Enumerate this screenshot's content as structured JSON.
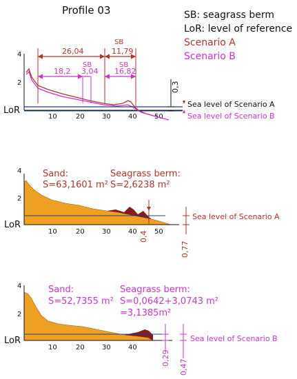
{
  "title": "Profile 03",
  "legend": {
    "sb": "SB: seagrass berm",
    "lor": "LoR: level of reference",
    "scenario_a": "Scenario A",
    "scenario_b": "Scenario B"
  },
  "colors": {
    "scenario_a": "#b2332b",
    "scenario_b": "#cc33cc",
    "sand": "#f0a020",
    "berm": "#8b1a1a",
    "sea_level": "#1f3f7a"
  },
  "lor_label": "LoR",
  "top_panel": {
    "y_ticks": [
      "4",
      "2"
    ],
    "x_ticks": [
      "10",
      "20",
      "30",
      "40",
      "50"
    ],
    "dims_a": [
      "26,04",
      "11,79"
    ],
    "sb_label_a": "SB",
    "dims_b": [
      "18,2",
      "3,04",
      "16,82"
    ],
    "sb_label_b": "SB",
    "vertical_dim": "0,3",
    "sea_level_a": "Sea level of Scenario A",
    "sea_level_b": "Sea level of Scenario B"
  },
  "middle_panel": {
    "y_ticks": [
      "4",
      "2"
    ],
    "x_ticks": [
      "10",
      "20",
      "30",
      "40",
      "50"
    ],
    "sand_label": "Sand:",
    "sand_value": "S=63,1601 m²",
    "berm_label": "Seagrass berm:",
    "berm_value": "S=2,6238 m²",
    "dim_small": "0,4",
    "dim_large": "0,77",
    "sea_level": "Sea level of Scenario A"
  },
  "bottom_panel": {
    "y_ticks": [
      "4",
      "2"
    ],
    "x_ticks": [
      "10",
      "20",
      "30",
      "40"
    ],
    "sand_label": "Sand:",
    "sand_value": "S=52,7355 m²",
    "berm_label": "Seagrass berm:",
    "berm_value": "S=0,0642+3,0743 m²",
    "berm_total": "=3,1385m²",
    "dim_small": "0,29",
    "dim_large": "0,47",
    "sea_level": "Sea level of Scenario B"
  }
}
